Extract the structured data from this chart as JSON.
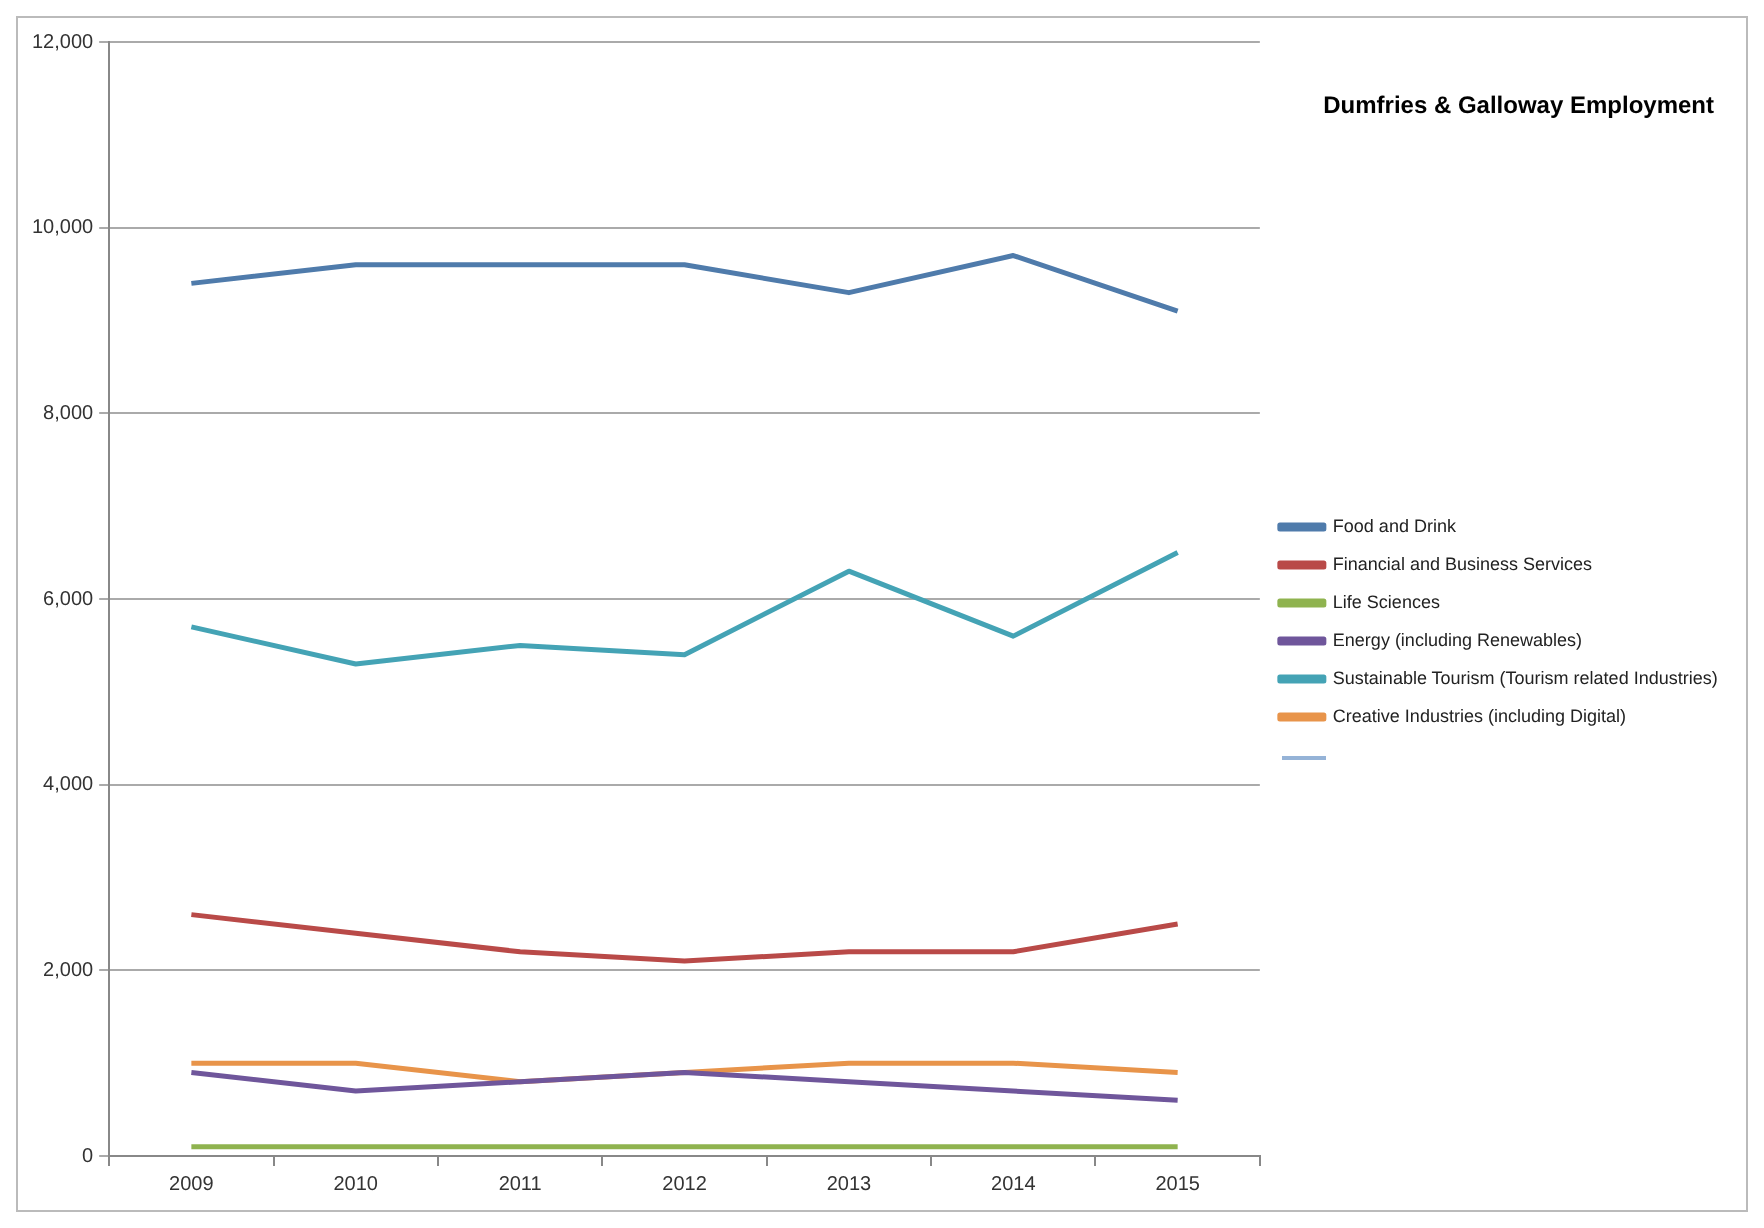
{
  "chart_data": {
    "type": "line",
    "title": "Dumfries & Galloway Employment",
    "categories": [
      "2009",
      "2010",
      "2011",
      "2012",
      "2013",
      "2014",
      "2015"
    ],
    "series": [
      {
        "name": "Food and Drink",
        "color": "#4f7bab",
        "values": [
          9400,
          9600,
          9600,
          9600,
          9300,
          9700,
          9100
        ]
      },
      {
        "name": "Financial and Business Services",
        "color": "#b94a48",
        "values": [
          2600,
          2400,
          2200,
          2100,
          2200,
          2200,
          2500
        ]
      },
      {
        "name": "Life Sciences",
        "color": "#8fb34f",
        "values": [
          100,
          100,
          100,
          100,
          100,
          100,
          100
        ]
      },
      {
        "name": "Energy (including Renewables)",
        "color": "#6f569b",
        "values": [
          900,
          700,
          800,
          900,
          800,
          700,
          600
        ]
      },
      {
        "name": "Sustainable Tourism (Tourism related Industries)",
        "color": "#44a3b5",
        "values": [
          5700,
          5300,
          5500,
          5400,
          6300,
          5600,
          6500
        ]
      },
      {
        "name": "Creative Industries (including Digital)",
        "color": "#e8944a",
        "values": [
          1000,
          1000,
          800,
          900,
          1000,
          1000,
          900
        ]
      }
    ],
    "ylim": [
      0,
      12000
    ],
    "yticks": [
      0,
      {
        "value": 2000,
        "label": "2,000"
      },
      {
        "value": 4000,
        "label": "4,000"
      },
      {
        "value": 6000,
        "label": "6,000"
      },
      {
        "value": 8000,
        "label": "8,000"
      },
      {
        "value": 10000,
        "label": "10,000"
      },
      {
        "value": 12000,
        "label": "12,000"
      }
    ],
    "grid": "y",
    "legend": "right",
    "marker": "none",
    "line_style": "solid"
  }
}
